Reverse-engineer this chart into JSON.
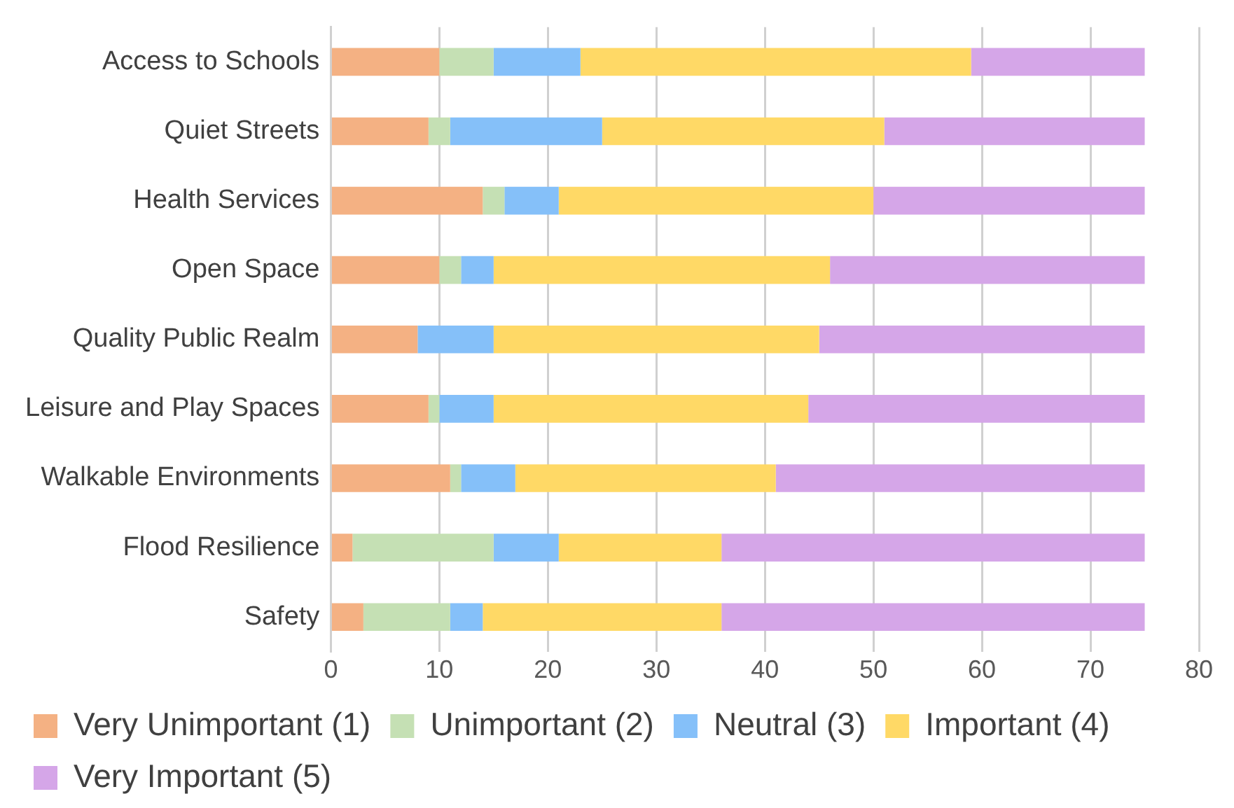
{
  "chart_data": {
    "type": "bar",
    "orientation": "horizontal",
    "stacked": true,
    "categories": [
      "Access to Schools",
      "Quiet Streets",
      "Health Services",
      "Open Space",
      "Quality Public Realm",
      "Leisure and Play Spaces",
      "Walkable Environments",
      "Flood Resilience",
      "Safety"
    ],
    "series": [
      {
        "name": "Very Unimportant (1)",
        "color": "#f4b183",
        "values": [
          10,
          9,
          14,
          10,
          8,
          9,
          11,
          2,
          3
        ]
      },
      {
        "name": "Unimportant (2)",
        "color": "#c5e0b4",
        "values": [
          5,
          2,
          2,
          2,
          0,
          1,
          1,
          13,
          8
        ]
      },
      {
        "name": "Neutral (3)",
        "color": "#85c0f9",
        "values": [
          8,
          14,
          5,
          3,
          7,
          5,
          5,
          6,
          3
        ]
      },
      {
        "name": "Important (4)",
        "color": "#ffd966",
        "values": [
          36,
          26,
          29,
          31,
          30,
          29,
          24,
          15,
          22
        ]
      },
      {
        "name": "Very Important (5)",
        "color": "#d5a6e8",
        "values": [
          16,
          24,
          25,
          29,
          30,
          31,
          34,
          39,
          39
        ]
      }
    ],
    "xlim": [
      0,
      80
    ],
    "xticks": [
      0,
      10,
      20,
      30,
      40,
      50,
      60,
      70,
      80
    ],
    "grid": "x",
    "legend": "bottom"
  }
}
